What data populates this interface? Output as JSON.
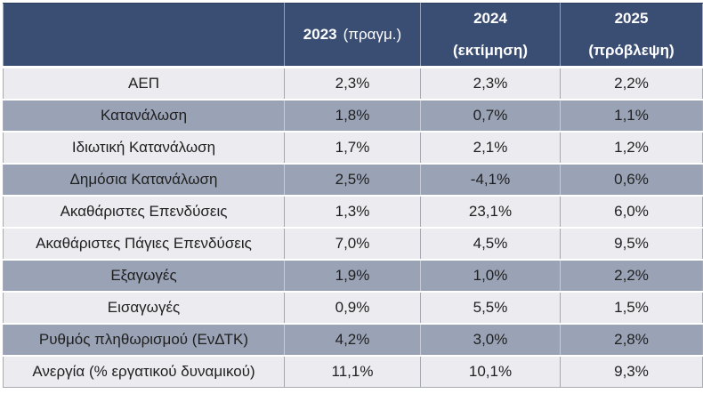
{
  "table": {
    "columns": [
      {
        "year": "2023",
        "suffix": "(πραγμ.)"
      },
      {
        "year": "2024",
        "suffix": "(εκτίμηση)"
      },
      {
        "year": "2025",
        "suffix": "(πρόβλεψη)"
      }
    ],
    "rows": [
      {
        "label": "ΑΕΠ",
        "values": [
          "2,3%",
          "2,3%",
          "2,2%"
        ]
      },
      {
        "label": "Κατανάλωση",
        "values": [
          "1,8%",
          "0,7%",
          "1,1%"
        ]
      },
      {
        "label": "Ιδιωτική Κατανάλωση",
        "values": [
          "1,7%",
          "2,1%",
          "1,2%"
        ]
      },
      {
        "label": "Δημόσια Κατανάλωση",
        "values": [
          "2,5%",
          "-4,1%",
          "0,6%"
        ]
      },
      {
        "label": "Ακαθάριστες Επενδύσεις",
        "values": [
          "1,3%",
          "23,1%",
          "6,0%"
        ]
      },
      {
        "label": "Ακαθάριστες Πάγιες Επενδύσεις",
        "values": [
          "7,0%",
          "4,5%",
          "9,5%"
        ]
      },
      {
        "label": "Εξαγωγές",
        "values": [
          "1,9%",
          "1,0%",
          "2,2%"
        ]
      },
      {
        "label": "Εισαγωγές",
        "values": [
          "0,9%",
          "5,5%",
          "1,5%"
        ]
      },
      {
        "label": "Ρυθμός πληθωρισμού (ΕνΔΤΚ)",
        "values": [
          "4,2%",
          "3,0%",
          "2,8%"
        ]
      },
      {
        "label": "Ανεργία (% εργατικού δυναμικού)",
        "values": [
          "11,1%",
          "10,1%",
          "9,3%"
        ]
      }
    ]
  },
  "colors": {
    "header_bg": "#3a4e74",
    "header_text": "#ffffff",
    "row_light_bg": "#ebebf0",
    "row_dark_bg": "#9aa3b5",
    "body_text": "#1f1f1f",
    "separator": "#ffffff",
    "outer_border": "#a9abb3"
  },
  "chart_data": {
    "type": "table",
    "title": "",
    "columns": [
      "",
      "2023 (πραγμ.)",
      "2024 (εκτίμηση)",
      "2025 (πρόβλεψη)"
    ],
    "row_labels": [
      "ΑΕΠ",
      "Κατανάλωση",
      "Ιδιωτική Κατανάλωση",
      "Δημόσια Κατανάλωση",
      "Ακαθάριστες Επενδύσεις",
      "Ακαθάριστες Πάγιες Επενδύσεις",
      "Εξαγωγές",
      "Εισαγωγές",
      "Ρυθμός πληθωρισμού (ΕνΔΤΚ)",
      "Ανεργία (% εργατικού δυναμικού)"
    ],
    "values_percent": [
      [
        2.3,
        2.3,
        2.2
      ],
      [
        1.8,
        0.7,
        1.1
      ],
      [
        1.7,
        2.1,
        1.2
      ],
      [
        2.5,
        -4.1,
        0.6
      ],
      [
        1.3,
        23.1,
        6.0
      ],
      [
        7.0,
        4.5,
        9.5
      ],
      [
        1.9,
        1.0,
        2.2
      ],
      [
        0.9,
        5.5,
        1.5
      ],
      [
        4.2,
        3.0,
        2.8
      ],
      [
        11.1,
        10.1,
        9.3
      ]
    ],
    "notes": "Greek macroeconomic indicators; 2023 actual, 2024 estimate, 2025 forecast; decimal comma formatting with % suffix"
  }
}
